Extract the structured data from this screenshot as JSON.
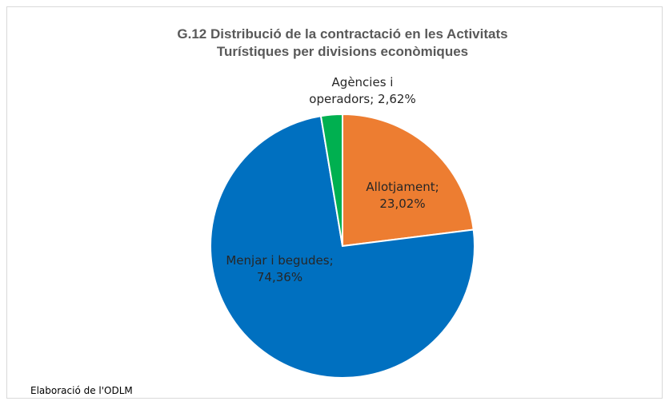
{
  "chart_data": {
    "type": "pie",
    "title": [
      "G.12 Distribució de la contractació en les Activitats",
      "Turístiques per divisions econòmiques"
    ],
    "values": [
      23.02,
      74.36,
      2.62
    ],
    "value_labels": [
      "Allotjament; 23,02%",
      "Menjar i begudes; 74,36%",
      "Agències i operadors; 2,62%"
    ],
    "colors": [
      "#ED7D31",
      "#0070C0",
      "#00B050"
    ],
    "note": "Elaboració de l'ODLM"
  }
}
